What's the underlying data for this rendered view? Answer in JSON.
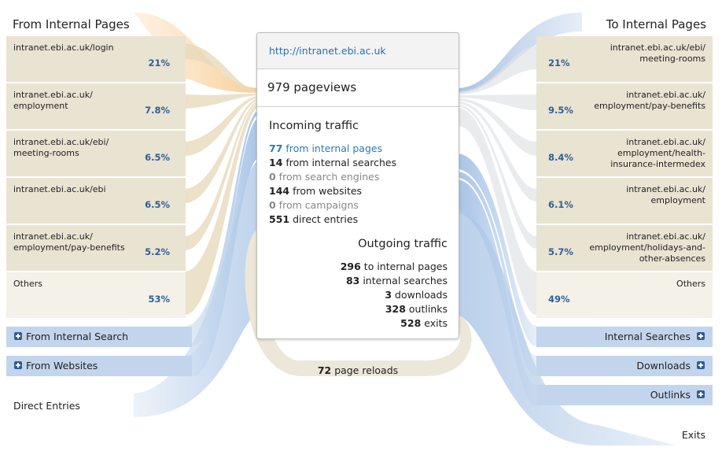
{
  "header": {
    "left_title": "From Internal Pages",
    "right_title": "To Internal Pages"
  },
  "incoming_pages": [
    {
      "label": "intranet.ebi.ac.uk/login",
      "pct": "21%"
    },
    {
      "label": "intranet.ebi.ac.uk/\nemployment",
      "pct": "7.8%"
    },
    {
      "label": "intranet.ebi.ac.uk/ebi/\nmeeting-rooms",
      "pct": "6.5%"
    },
    {
      "label": "intranet.ebi.ac.uk/ebi",
      "pct": "6.5%"
    },
    {
      "label": "intranet.ebi.ac.uk/\nemployment/pay-benefits",
      "pct": "5.2%"
    },
    {
      "label": "Others",
      "pct": "53%"
    }
  ],
  "outgoing_pages": [
    {
      "label": "intranet.ebi.ac.uk/ebi/\nmeeting-rooms",
      "pct": "21%"
    },
    {
      "label": "intranet.ebi.ac.uk/\nemployment/pay-benefits",
      "pct": "9.5%"
    },
    {
      "label": "intranet.ebi.ac.uk/\nemployment/health-\ninsurance-intermedex",
      "pct": "8.4%"
    },
    {
      "label": "intranet.ebi.ac.uk/\nemployment",
      "pct": "6.1%"
    },
    {
      "label": "intranet.ebi.ac.uk/\nemployment/holidays-and-\nother-absences",
      "pct": "5.7%"
    },
    {
      "label": "Others",
      "pct": "49%"
    }
  ],
  "left_groups": {
    "internal_search": "From Internal Search",
    "websites": "From Websites",
    "direct": "Direct Entries"
  },
  "right_groups": {
    "internal_searches": "Internal Searches",
    "downloads": "Downloads",
    "outlinks": "Outlinks",
    "exits": "Exits"
  },
  "panel": {
    "url": "http://intranet.ebi.ac.uk",
    "pageviews": "979 pageviews",
    "incoming_title": "Incoming traffic",
    "incoming": [
      {
        "num": "77",
        "text": " from internal pages"
      },
      {
        "num": "14",
        "text": " from internal searches"
      },
      {
        "num": "0",
        "text": " from search engines"
      },
      {
        "num": "144",
        "text": " from websites"
      },
      {
        "num": "0",
        "text": " from campaigns"
      },
      {
        "num": "551",
        "text": " direct entries"
      }
    ],
    "outgoing_title": "Outgoing traffic",
    "outgoing": [
      {
        "num": "296",
        "text": " to internal pages"
      },
      {
        "num": "83",
        "text": " internal searches"
      },
      {
        "num": "3",
        "text": " downloads"
      },
      {
        "num": "328",
        "text": " outlinks"
      },
      {
        "num": "528",
        "text": " exits"
      }
    ]
  },
  "reloads": {
    "num": "72",
    "text": " page reloads"
  },
  "colors": {
    "orange_flow": "#f6c98a",
    "blue_flow": "#9fbde4",
    "beige_row": "#e9e3d2",
    "link_blue": "#2a7ab8",
    "pct_blue": "#2f5f98"
  }
}
